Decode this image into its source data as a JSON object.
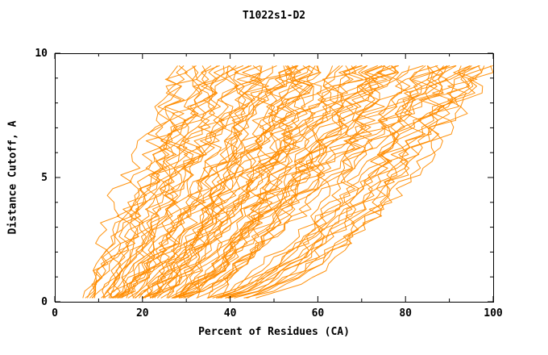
{
  "page": {
    "background": "#ffffff"
  },
  "chart_data": {
    "type": "line",
    "title": "T1022s1-D2",
    "xlabel": "Percent of Residues (CA)",
    "ylabel": "Distance Cutoff, A",
    "xlim": [
      0,
      100
    ],
    "ylim": [
      0,
      10
    ],
    "xticks": [
      0,
      20,
      40,
      60,
      80,
      100
    ],
    "xticks_minor": [
      10,
      30,
      50,
      70,
      90
    ],
    "yticks": [
      0,
      5,
      10
    ],
    "yticks_minor": [
      1,
      2,
      3,
      4,
      6,
      7,
      8,
      9
    ],
    "grid": false,
    "legend": null,
    "line_color": "#ff8c00",
    "frame_color": "#000000",
    "description": "GDT-style plot: large family of overlapping jagged orange model-accuracy curves, each rising from ~0.2 A at 6-38% of residues to ~9.5 A at 30-100% of residues, with a dense bundle hugging the bottom axis between roughly 10% and 60%.",
    "curve_family": {
      "count": 85,
      "seed": 13,
      "start_range": [
        6,
        36
      ],
      "end_range": [
        30,
        100
      ],
      "shape_cycle": [
        0.45,
        0.8,
        1.2,
        0.55,
        1.0,
        0.3,
        0.9,
        1.6,
        0.5,
        0.7,
        0.4,
        1.35
      ],
      "y_bottom": 0.15,
      "y_top": 9.5,
      "samples": 34,
      "jitter": 2.4
    }
  }
}
